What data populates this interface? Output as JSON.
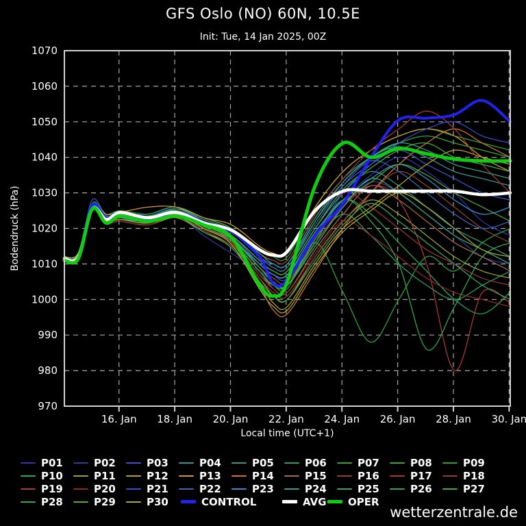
{
  "header": {
    "title": "GFS Oslo (NO) 60N, 10.5E",
    "subtitle": "Init: Tue, 14 Jan 2025, 00Z"
  },
  "watermark": "wetterzentrale.de",
  "colors": {
    "background": "#000000",
    "frame": "#d4d4d4",
    "grid": "#aaaaaa",
    "text": "#ffffff",
    "control": "#2222ee",
    "avg": "#ffffff",
    "oper": "#11cc11"
  },
  "chart_data": {
    "type": "line",
    "title": "GFS Oslo (NO) 60N, 10.5E",
    "subtitle": "Init: Tue, 14 Jan 2025, 00Z",
    "xlabel": "Local time (UTC+1)",
    "ylabel": "Bodendruck (hPa)",
    "ylim": [
      970,
      1070
    ],
    "yticks": [
      970,
      980,
      990,
      1000,
      1010,
      1020,
      1030,
      1040,
      1050,
      1060,
      1070
    ],
    "grid": "dashed",
    "legend_position": "below",
    "xlim_days": [
      0,
      16
    ],
    "x_days_after_init": [
      0,
      0.5,
      1,
      1.5,
      2,
      3,
      4,
      5,
      6,
      7,
      7.5,
      8,
      9,
      10,
      11,
      12,
      13,
      14,
      15,
      16
    ],
    "xticks": [
      {
        "day": 1.96,
        "label": "16. Jan"
      },
      {
        "day": 3.96,
        "label": "18. Jan"
      },
      {
        "day": 5.96,
        "label": "20. Jan"
      },
      {
        "day": 7.96,
        "label": "22. Jan"
      },
      {
        "day": 9.96,
        "label": "24. Jan"
      },
      {
        "day": 11.96,
        "label": "26. Jan"
      },
      {
        "day": 13.96,
        "label": "28. Jan"
      },
      {
        "day": 15.96,
        "label": "30. Jan"
      }
    ],
    "series": [
      {
        "name": "P01",
        "color": "#3333aa",
        "width": 1.3,
        "values": [
          1011.5,
          1012.5,
          1026,
          1022.5,
          1023,
          1022,
          1025,
          1021,
          1018,
          1010,
          1007,
          1006,
          1018,
          1028,
          1035,
          1040,
          1036,
          1030,
          1022,
          1018
        ]
      },
      {
        "name": "P02",
        "color": "#333899",
        "width": 1.3,
        "values": [
          1011,
          1012,
          1025,
          1022,
          1022.5,
          1023,
          1024,
          1018,
          1013,
          1008,
          1005,
          1004,
          1015,
          1026,
          1033,
          1030,
          1024,
          1018,
          1012,
          1010
        ]
      },
      {
        "name": "P03",
        "color": "#3a55cc",
        "width": 1.3,
        "values": [
          1012,
          1013,
          1028,
          1023.5,
          1024,
          1024,
          1026,
          1022,
          1019,
          1012,
          1010,
          1010,
          1022,
          1032,
          1038,
          1042,
          1038,
          1034,
          1030,
          1028
        ]
      },
      {
        "name": "P04",
        "color": "#3d8f99",
        "width": 1.3,
        "values": [
          1011.5,
          1012.5,
          1026.5,
          1023,
          1023.5,
          1022.5,
          1025.5,
          1023,
          1020,
          1013,
          1011,
          1011,
          1024,
          1034,
          1040,
          1043,
          1040,
          1036,
          1034,
          1032
        ]
      },
      {
        "name": "P05",
        "color": "#36997f",
        "width": 1.3,
        "values": [
          1011,
          1012,
          1025,
          1021.5,
          1022,
          1021,
          1024,
          1022,
          1018,
          1011,
          1008,
          1008,
          1020,
          1030,
          1036,
          1032,
          1026,
          1020,
          1016,
          1012
        ]
      },
      {
        "name": "P06",
        "color": "#2f9f62",
        "width": 1.3,
        "values": [
          1012,
          1013,
          1026,
          1022.5,
          1023,
          1023,
          1025,
          1021,
          1017,
          1009,
          1006,
          1005,
          1016,
          1024,
          1018,
          1010,
          1004,
          1000,
          1004,
          1008
        ]
      },
      {
        "name": "P07",
        "color": "#2fa53a",
        "width": 1.3,
        "values": [
          1011.5,
          1012.5,
          1025.5,
          1023,
          1024,
          1022,
          1024,
          1020,
          1016,
          1007,
          1004,
          1003,
          1016,
          1002,
          988,
          1000,
          1012,
          1008,
          1016,
          1020
        ]
      },
      {
        "name": "P08",
        "color": "#37a83c",
        "width": 1.3,
        "values": [
          1011,
          1012,
          1026,
          1022.5,
          1023.5,
          1023,
          1025,
          1022,
          1019,
          1012,
          1009,
          1009,
          1022,
          1033,
          1040,
          1044,
          1046,
          1044,
          1042,
          1040
        ]
      },
      {
        "name": "P09",
        "color": "#2f9f33",
        "width": 1.3,
        "values": [
          1012,
          1013,
          1027,
          1024,
          1025,
          1024,
          1026,
          1023,
          1020,
          1014,
          1012,
          1012,
          1026,
          1036,
          1042,
          1046,
          1048,
          1046,
          1044,
          1042
        ]
      },
      {
        "name": "P10",
        "color": "#2aa855",
        "width": 1.3,
        "values": [
          1011.5,
          1012.5,
          1026,
          1023,
          1024,
          1023,
          1025,
          1021,
          1018,
          1010,
          1007,
          1007,
          1018,
          1028,
          1024,
          1016,
          1008,
          1000,
          996,
          1002
        ]
      },
      {
        "name": "P11",
        "color": "#9aa63b",
        "width": 1.3,
        "values": [
          1011,
          1012,
          1025,
          1021.5,
          1022,
          1021,
          1023,
          1019,
          1015,
          1006,
          1001,
          1000,
          1012,
          1022,
          1028,
          1024,
          1018,
          1012,
          1008,
          1006
        ]
      },
      {
        "name": "P12",
        "color": "#b3a12e",
        "width": 1.3,
        "values": [
          1012,
          1013,
          1026,
          1022.5,
          1023,
          1022,
          1024,
          1020,
          1016,
          1005,
          999,
          998,
          1010,
          1020,
          1026,
          1032,
          1038,
          1042,
          1040,
          1038
        ]
      },
      {
        "name": "P13",
        "color": "#cc9933",
        "width": 1.3,
        "values": [
          1011.5,
          1012.5,
          1026.5,
          1024,
          1024.5,
          1026,
          1026,
          1023,
          1021,
          1015,
          1013,
          1013,
          1026,
          1036,
          1042,
          1046,
          1048,
          1046,
          1040,
          1036
        ]
      },
      {
        "name": "P14",
        "color": "#cc7733",
        "width": 1.3,
        "values": [
          1011,
          1012,
          1025.5,
          1022,
          1023,
          1022,
          1025,
          1021,
          1017,
          1004,
          997,
          996,
          1008,
          1020,
          1030,
          1038,
          1044,
          1048,
          1044,
          1040
        ]
      },
      {
        "name": "P15",
        "color": "#a1714a",
        "width": 1.3,
        "values": [
          1012,
          1013,
          1026,
          1023,
          1023.5,
          1023,
          1024,
          1020,
          1016,
          1008,
          1003,
          1002,
          1014,
          1024,
          1032,
          1028,
          1022,
          1016,
          1012,
          1008
        ]
      },
      {
        "name": "P16",
        "color": "#8a4433",
        "width": 1.3,
        "values": [
          1011.5,
          1012.5,
          1025,
          1022,
          1022.5,
          1022,
          1023.5,
          1019.5,
          1015,
          1006,
          1002,
          1001,
          1012,
          1022,
          1030,
          1036,
          1032,
          1026,
          1020,
          1016
        ]
      },
      {
        "name": "P17",
        "color": "#a13a33",
        "width": 1.3,
        "values": [
          1011,
          1012,
          1026,
          1022.5,
          1023,
          1023,
          1025,
          1022,
          1019,
          1013,
          1011,
          1011,
          1024,
          1034,
          1042,
          1048,
          1053,
          1048,
          1038,
          1030
        ]
      },
      {
        "name": "P18",
        "color": "#8f3a3a",
        "width": 1.3,
        "values": [
          1012,
          1013,
          1026.5,
          1023.5,
          1024,
          1023,
          1025,
          1021,
          1018,
          1011,
          1008,
          1008,
          1020,
          1030,
          1026,
          1020,
          1014,
          1010,
          1006,
          1004
        ]
      },
      {
        "name": "P19",
        "color": "#aa3939",
        "width": 1.3,
        "values": [
          1011.5,
          1012.5,
          1025.5,
          1022.5,
          1023,
          1022,
          1024,
          1020,
          1017,
          1009,
          1006,
          1005,
          1016,
          1026,
          1032,
          1028,
          1010,
          980,
          1002,
          999
        ]
      },
      {
        "name": "P20",
        "color": "#8f2929",
        "width": 1.3,
        "values": [
          1011,
          1012,
          1025,
          1021.5,
          1022,
          1021,
          1023.5,
          1020,
          1016,
          1007,
          1003,
          1002,
          1013,
          1022,
          1018,
          1012,
          1006,
          1002,
          1000,
          998
        ]
      },
      {
        "name": "P21",
        "color": "#3a4ccc",
        "width": 1.3,
        "values": [
          1012,
          1013,
          1026,
          1023,
          1023.5,
          1023,
          1025,
          1022,
          1018,
          1010,
          1007,
          1006,
          1018,
          1030,
          1038,
          1044,
          1048,
          1050,
          1046,
          1044
        ]
      },
      {
        "name": "P22",
        "color": "#3a66b3",
        "width": 1.3,
        "values": [
          1011.5,
          1012.5,
          1026,
          1023,
          1024,
          1023,
          1025.5,
          1022,
          1019,
          1012,
          1009,
          1009,
          1021,
          1032,
          1039,
          1036,
          1030,
          1024,
          1020,
          1022
        ]
      },
      {
        "name": "P23",
        "color": "#3a8fcc",
        "width": 1.3,
        "values": [
          1011,
          1012,
          1025,
          1022,
          1022.5,
          1022,
          1024,
          1021,
          1017,
          1010,
          1007,
          1007,
          1019,
          1028,
          1034,
          1038,
          1034,
          1028,
          1024,
          1026
        ]
      },
      {
        "name": "P24",
        "color": "#3a9f8f",
        "width": 1.3,
        "values": [
          1012,
          1013,
          1026.5,
          1023.5,
          1024,
          1023.5,
          1025.5,
          1022.5,
          1019.5,
          1013,
          1010,
          1010,
          1023,
          1033,
          1040,
          1044,
          1042,
          1038,
          1036,
          1034
        ]
      },
      {
        "name": "P25",
        "color": "#3aa374",
        "width": 1.3,
        "values": [
          1011.5,
          1012.5,
          1025.5,
          1022.5,
          1023,
          1022,
          1024.5,
          1021,
          1017.5,
          1009,
          1005,
          1004,
          1015,
          1026,
          1034,
          1030,
          1024,
          1018,
          1014,
          1010
        ]
      },
      {
        "name": "P26",
        "color": "#33a84d",
        "width": 1.3,
        "values": [
          1011,
          1012,
          1026,
          1022.5,
          1023,
          1022.5,
          1024.5,
          1020.5,
          1016.5,
          1008,
          1004,
          1004,
          1016,
          1028,
          1022,
          1010,
          986,
          998,
          1012,
          1016
        ]
      },
      {
        "name": "P27",
        "color": "#3fae3f",
        "width": 1.3,
        "values": [
          1012,
          1013,
          1026,
          1023.5,
          1024,
          1023,
          1025,
          1021.5,
          1018,
          1011,
          1008,
          1008,
          1020,
          1031,
          1037,
          1042,
          1044,
          1040,
          1038,
          1036
        ]
      },
      {
        "name": "P28",
        "color": "#3aa855",
        "width": 1.3,
        "values": [
          1011.5,
          1012.5,
          1025,
          1022,
          1022.5,
          1021.5,
          1023.5,
          1019,
          1014.5,
          1005,
          1001,
          1000,
          1011,
          1021,
          1027,
          1022,
          1016,
          1010,
          1004,
          1000
        ]
      },
      {
        "name": "P29",
        "color": "#55a83d",
        "width": 1.3,
        "values": [
          1011,
          1012,
          1026,
          1023,
          1023.5,
          1022.5,
          1025,
          1021,
          1017,
          1009,
          1005,
          1004,
          1017,
          1027,
          1033,
          1038,
          1035,
          1030,
          1026,
          1022
        ]
      },
      {
        "name": "P30",
        "color": "#a8a83d",
        "width": 1.3,
        "values": [
          1012,
          1013,
          1025.5,
          1022,
          1022.5,
          1021.5,
          1024,
          1020,
          1015.5,
          1003,
          998,
          997,
          1009,
          1019,
          1025,
          1030,
          1026,
          1020,
          1014,
          1012
        ]
      },
      {
        "name": "CONTROL",
        "color": "#2222ee",
        "width": 4,
        "values": [
          1011.5,
          1012,
          1026.5,
          1023,
          1024.5,
          1022.5,
          1024.5,
          1021,
          1019,
          1012,
          1004.5,
          1005.5,
          1018,
          1027,
          1040,
          1050.5,
          1051,
          1052,
          1056,
          1050
        ]
      },
      {
        "name": "AVG",
        "color": "#ffffff",
        "width": 4.5,
        "values": [
          1011.5,
          1012,
          1025.5,
          1022.5,
          1024.5,
          1023,
          1024.5,
          1021.5,
          1019.5,
          1014,
          1012.5,
          1013.5,
          1025,
          1030.5,
          1030.5,
          1030.5,
          1030.5,
          1030.5,
          1029.5,
          1030
        ]
      },
      {
        "name": "OPER",
        "color": "#11cc11",
        "width": 5,
        "values": [
          1011,
          1011.5,
          1025.5,
          1021.5,
          1023.5,
          1022,
          1023.5,
          1021,
          1017.5,
          1004,
          1001,
          1005,
          1032,
          1044,
          1040,
          1042.5,
          1041,
          1039.5,
          1039,
          1039
        ]
      }
    ]
  }
}
